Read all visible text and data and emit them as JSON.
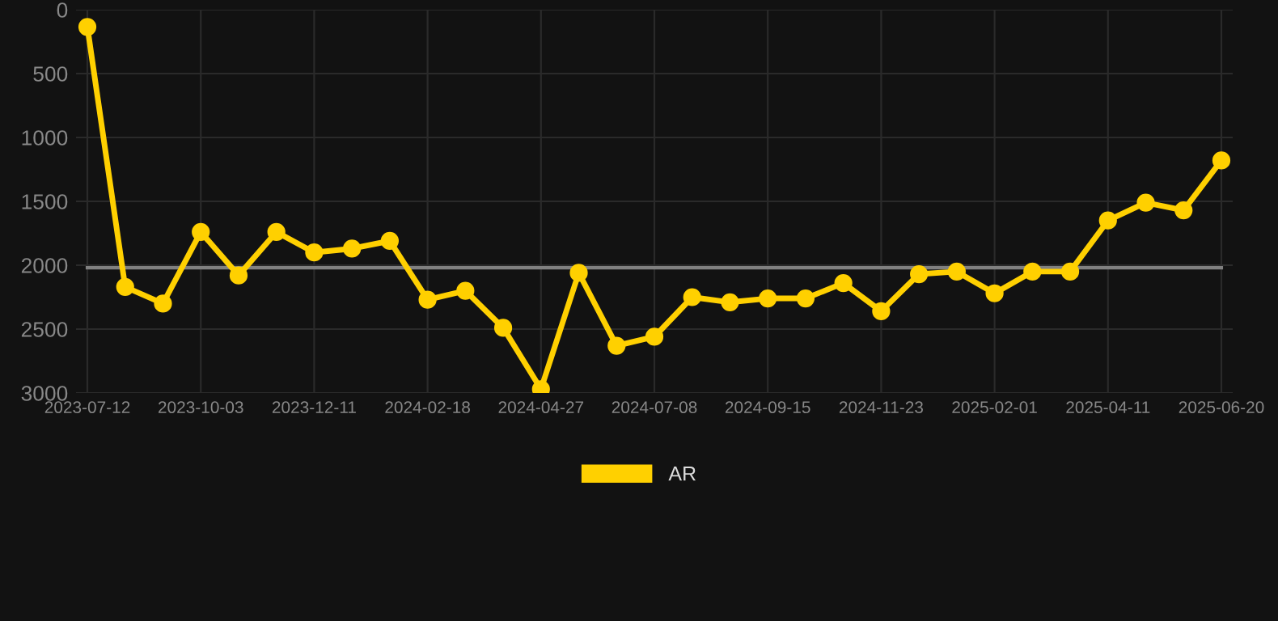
{
  "chart_data": {
    "type": "line",
    "categories": [
      "2023-07-12",
      null,
      null,
      "2023-10-03",
      null,
      null,
      "2023-12-11",
      null,
      null,
      "2024-02-18",
      null,
      null,
      "2024-04-27",
      null,
      null,
      "2024-07-08",
      null,
      null,
      "2024-09-15",
      null,
      null,
      "2024-11-23",
      null,
      null,
      "2025-02-01",
      null,
      null,
      "2025-04-11",
      null,
      null,
      "2025-06-20"
    ],
    "series": [
      {
        "name": "AR",
        "color": "#ffd000",
        "values": [
          135,
          2170,
          2300,
          1740,
          2080,
          1740,
          1900,
          1870,
          1810,
          2270,
          2200,
          2490,
          2970,
          2060,
          2630,
          2560,
          2250,
          2290,
          2260,
          2260,
          2140,
          2360,
          2070,
          2050,
          2220,
          2050,
          2050,
          1650,
          1510,
          1570,
          1180
        ]
      }
    ],
    "ylim": [
      3000,
      0
    ],
    "yticks": [
      0,
      500,
      1000,
      1500,
      2000,
      2500,
      3000
    ],
    "ref_lines": [
      {
        "axis": "y",
        "value": 2020,
        "color": "#808080"
      }
    ],
    "grid": true,
    "legend": "bottom",
    "marker": "circle",
    "line_style": "solid"
  }
}
